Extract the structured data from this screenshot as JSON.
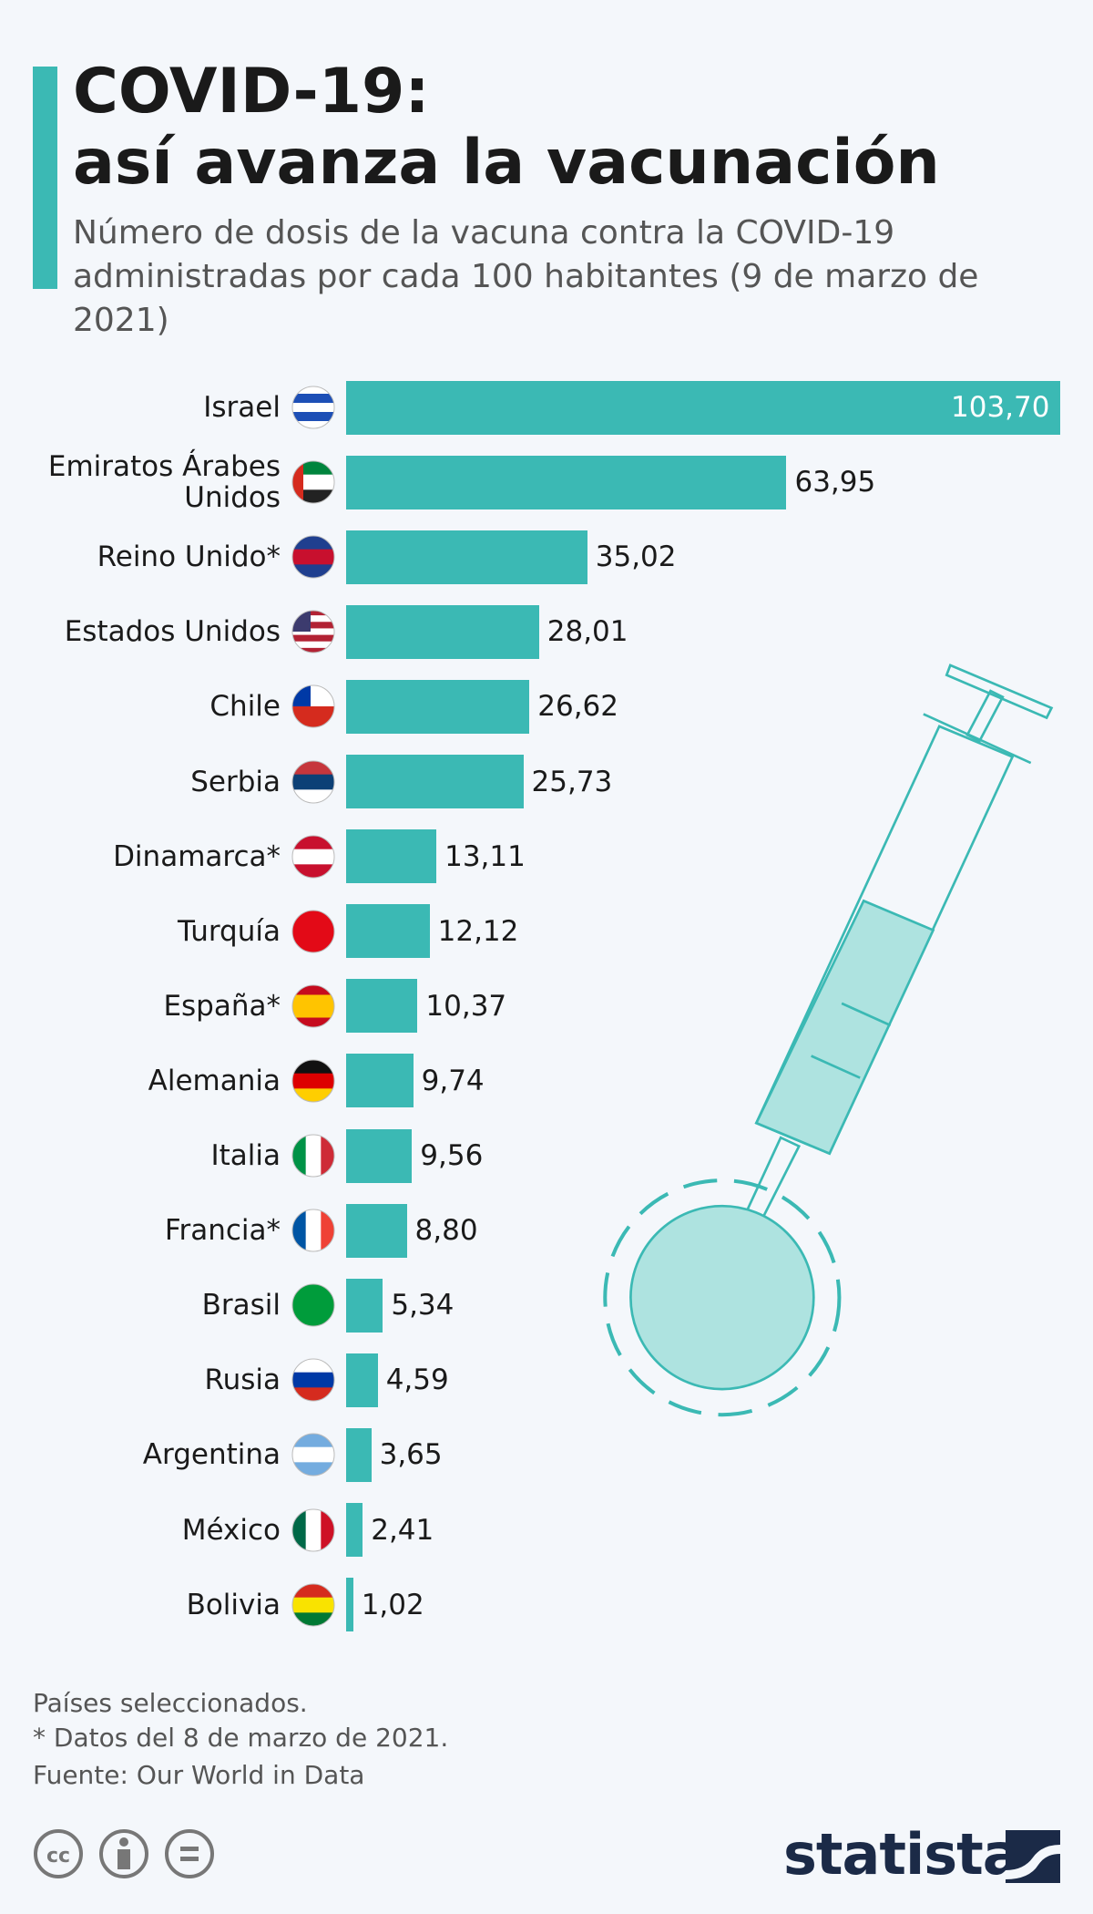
{
  "header": {
    "title": [
      "COVID-19:",
      "así avanza la vacunación"
    ],
    "subtitle": "Número de dosis de la vacuna contra la COVID-19 administradas por cada 100 habitantes (9 de marzo de 2021)"
  },
  "chart_data": {
    "type": "bar",
    "orientation": "horizontal",
    "color": "#3bb9b4",
    "categories": [
      "Israel",
      "Emiratos Árabes Unidos",
      "Reino Unido*",
      "Estados Unidos",
      "Chile",
      "Serbia",
      "Dinamarca*",
      "Turquía",
      "España*",
      "Alemania",
      "Italia",
      "Francia*",
      "Brasil",
      "Rusia",
      "Argentina",
      "México",
      "Bolivia"
    ],
    "values": [
      103.7,
      63.95,
      35.02,
      28.01,
      26.62,
      25.73,
      13.11,
      12.12,
      10.37,
      9.74,
      9.56,
      8.8,
      5.34,
      4.59,
      3.65,
      2.41,
      1.02
    ],
    "value_labels": [
      "103,70",
      "63,95",
      "35,02",
      "28,01",
      "26,62",
      "25,73",
      "13,11",
      "12,12",
      "10,37",
      "9,74",
      "9,56",
      "8,80",
      "5,34",
      "4,59",
      "3,65",
      "2,41",
      "1,02"
    ]
  },
  "footer": {
    "notes": [
      "Países seleccionados.",
      "* Datos del 8 de marzo de 2021.",
      "Fuente: Our World in Data"
    ],
    "brand": "statista"
  }
}
